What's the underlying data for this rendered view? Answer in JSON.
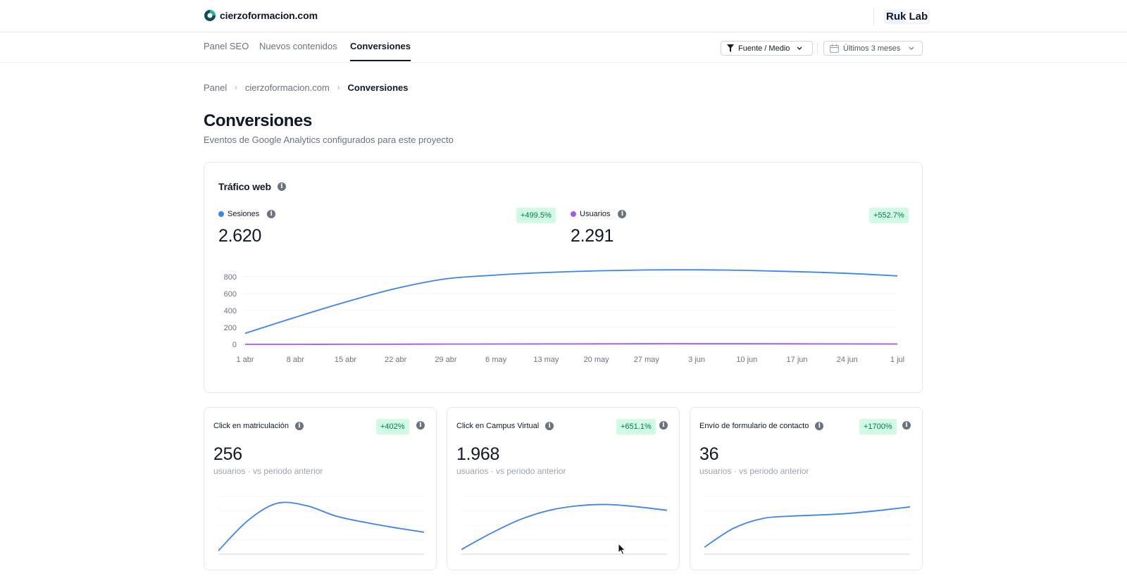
{
  "header": {
    "site_name": "cierzoformacion.com",
    "org_prefix": "Ruk",
    "org_suffix": " Lab"
  },
  "nav": {
    "tabs": [
      {
        "label": "Panel SEO",
        "active": false
      },
      {
        "label": "Nuevos contenidos",
        "active": false
      },
      {
        "label": "Conversiones",
        "active": true
      }
    ],
    "filter_label": "Fuente / Medio",
    "date_label": "Últimos 3 meses"
  },
  "breadcrumb": [
    "Panel",
    "cierzoformacion.com",
    "Conversiones"
  ],
  "page": {
    "title": "Conversiones",
    "subtitle": "Eventos de Google Analytics configurados para este proyecto"
  },
  "traffic": {
    "title": "Tráfico web",
    "metrics": [
      {
        "label": "Sesiones",
        "value": "2.620",
        "change": "+499.5%",
        "color": "#3b82f6"
      },
      {
        "label": "Usuarios",
        "value": "2.291",
        "change": "+552.7%",
        "color": "#a855f7"
      }
    ]
  },
  "conversions": [
    {
      "title": "Click en matriculación",
      "value": "256",
      "change": "+402%",
      "caption": "usuarios · vs periodo anterior"
    },
    {
      "title": "Click en Campus Virtual",
      "value": "1.968",
      "change": "+651.1%",
      "caption": "usuarios · vs periodo anterior"
    },
    {
      "title": "Envío de formulario de contacto",
      "value": "36",
      "change": "+1700%",
      "caption": "usuarios · vs periodo anterior"
    }
  ],
  "colors": {
    "accent": "#3b82f6",
    "secondary": "#a855f7",
    "positive_bg": "#d1fae5",
    "positive_text": "#047857"
  },
  "chart_data": [
    {
      "type": "line",
      "x": [
        "1 abr",
        "8 abr",
        "15 abr",
        "22 abr",
        "29 abr",
        "6 may",
        "13 may",
        "20 may",
        "27 may",
        "3 jun",
        "10 jun",
        "17 jun",
        "24 jun",
        "1 jul"
      ],
      "series": [
        {
          "name": "Sesiones",
          "values": [
            130,
            320,
            500,
            660,
            775,
            820,
            850,
            870,
            880,
            882,
            875,
            860,
            840,
            810
          ]
        },
        {
          "name": "Usuarios",
          "values": [
            0,
            0,
            1,
            2,
            3,
            4,
            5,
            6,
            7,
            7,
            7,
            6,
            5,
            4
          ]
        }
      ],
      "ylim": [
        0,
        900
      ],
      "yticks": [
        0,
        200,
        400,
        600,
        800
      ],
      "grid": true
    },
    {
      "type": "line",
      "values": [
        6,
        58,
        88,
        84,
        66,
        55,
        46,
        38
      ],
      "ylim": [
        0,
        100
      ]
    },
    {
      "type": "line",
      "values": [
        8,
        36,
        60,
        76,
        84,
        86,
        82,
        76
      ],
      "ylim": [
        0,
        100
      ]
    },
    {
      "type": "line",
      "values": [
        12,
        45,
        62,
        66,
        68,
        71,
        76,
        82
      ],
      "ylim": [
        0,
        100
      ]
    }
  ]
}
